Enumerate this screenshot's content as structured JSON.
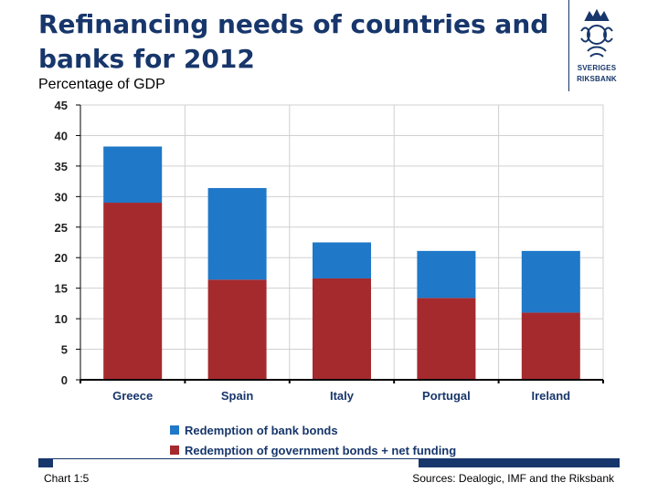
{
  "header": {
    "title": "Refinancing needs of countries and banks for 2012",
    "subtitle": "Percentage of GDP",
    "logo_lines": [
      "SVERIGES",
      "RIKSBANK"
    ]
  },
  "colors": {
    "title": "#17366b",
    "bank_bonds": "#1f78c8",
    "government_bonds": "#a52a2e",
    "grid": "#d0d0d0",
    "axis": "#000000"
  },
  "chart_data": {
    "type": "bar",
    "stacked": true,
    "categories": [
      "Greece",
      "Spain",
      "Italy",
      "Portugal",
      "Ireland"
    ],
    "series": [
      {
        "name": "Redemption of government bonds + net funding",
        "values": [
          29.0,
          16.4,
          16.6,
          13.4,
          11.0
        ]
      },
      {
        "name": "Redemption of bank bonds",
        "values": [
          9.2,
          15.0,
          5.9,
          7.7,
          10.1
        ]
      }
    ],
    "ylim": [
      0,
      45
    ],
    "yticks": [
      0,
      5,
      10,
      15,
      20,
      25,
      30,
      35,
      40,
      45
    ],
    "grid": true,
    "legend_position": "bottom"
  },
  "footer": {
    "chart_number": "Chart 1:5",
    "sources": "Sources: Dealogic, IMF and the Riksbank"
  }
}
